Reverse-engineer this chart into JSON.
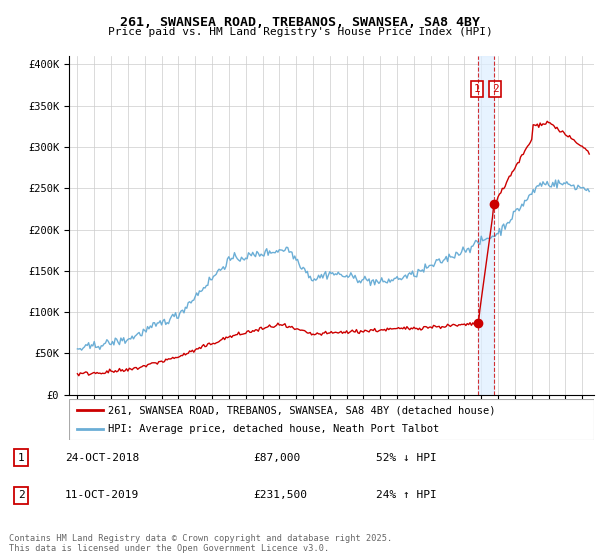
{
  "title": "261, SWANSEA ROAD, TREBANOS, SWANSEA, SA8 4BY",
  "subtitle": "Price paid vs. HM Land Registry's House Price Index (HPI)",
  "legend_line1": "261, SWANSEA ROAD, TREBANOS, SWANSEA, SA8 4BY (detached house)",
  "legend_line2": "HPI: Average price, detached house, Neath Port Talbot",
  "footer": "Contains HM Land Registry data © Crown copyright and database right 2025.\nThis data is licensed under the Open Government Licence v3.0.",
  "sale1_label": "1",
  "sale1_date": "24-OCT-2018",
  "sale1_price": "£87,000",
  "sale1_hpi": "52% ↓ HPI",
  "sale2_label": "2",
  "sale2_date": "11-OCT-2019",
  "sale2_price": "£231,500",
  "sale2_hpi": "24% ↑ HPI",
  "sale1_x": 2018.81,
  "sale1_y": 87000,
  "sale2_x": 2019.78,
  "sale2_y": 231500,
  "hpi_color": "#6baed6",
  "price_color": "#cc0000",
  "vline_color": "#cc0000",
  "shade_color": "#ddeeff",
  "background_color": "#ffffff",
  "grid_color": "#cccccc",
  "ylim": [
    0,
    410000
  ],
  "xlim_start": 1994.5,
  "xlim_end": 2025.7
}
